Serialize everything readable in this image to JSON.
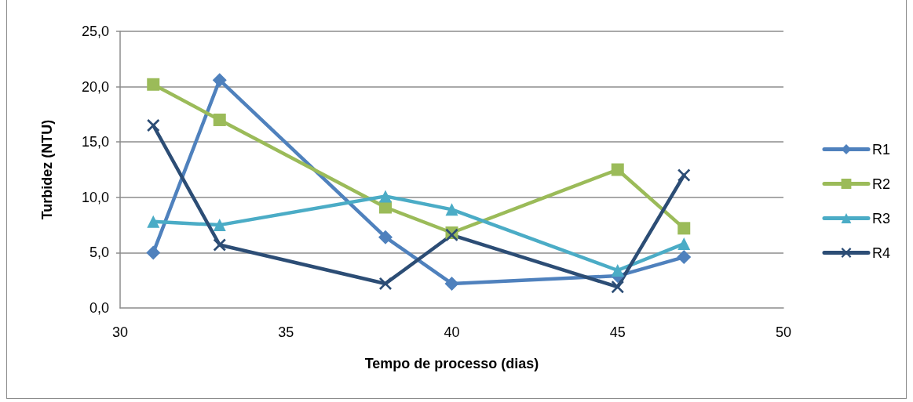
{
  "chart_data": {
    "type": "line",
    "xlabel": "Tempo de processo (dias)",
    "ylabel": "Turbidez (NTU)",
    "x": [
      31,
      33,
      38,
      40,
      45,
      47
    ],
    "series": [
      {
        "name": "R1",
        "color": "#4f81bd",
        "marker": "diamond",
        "values": [
          5.0,
          20.6,
          6.4,
          2.2,
          2.9,
          4.6
        ]
      },
      {
        "name": "R2",
        "color": "#9bbb59",
        "marker": "square",
        "values": [
          20.2,
          17.0,
          9.1,
          6.8,
          12.5,
          7.2
        ]
      },
      {
        "name": "R3",
        "color": "#4bacc6",
        "marker": "triangle",
        "values": [
          7.8,
          7.5,
          10.1,
          8.9,
          3.4,
          5.8
        ]
      },
      {
        "name": "R4",
        "color": "#2c4d75",
        "marker": "cross",
        "values": [
          16.5,
          5.7,
          2.2,
          6.6,
          1.9,
          12.0
        ]
      }
    ],
    "xlim": [
      30,
      50
    ],
    "xticks": [
      30,
      35,
      40,
      45,
      50
    ],
    "ylim": [
      0,
      25
    ],
    "yticks": [
      {
        "value": 0,
        "label": "0,0"
      },
      {
        "value": 5,
        "label": "5,0"
      },
      {
        "value": 10,
        "label": "10,0"
      },
      {
        "value": 15,
        "label": "15,0"
      },
      {
        "value": 20,
        "label": "20,0"
      },
      {
        "value": 25,
        "label": "25,0"
      }
    ],
    "grid": "y",
    "legend": "right",
    "line_style": "solid"
  }
}
